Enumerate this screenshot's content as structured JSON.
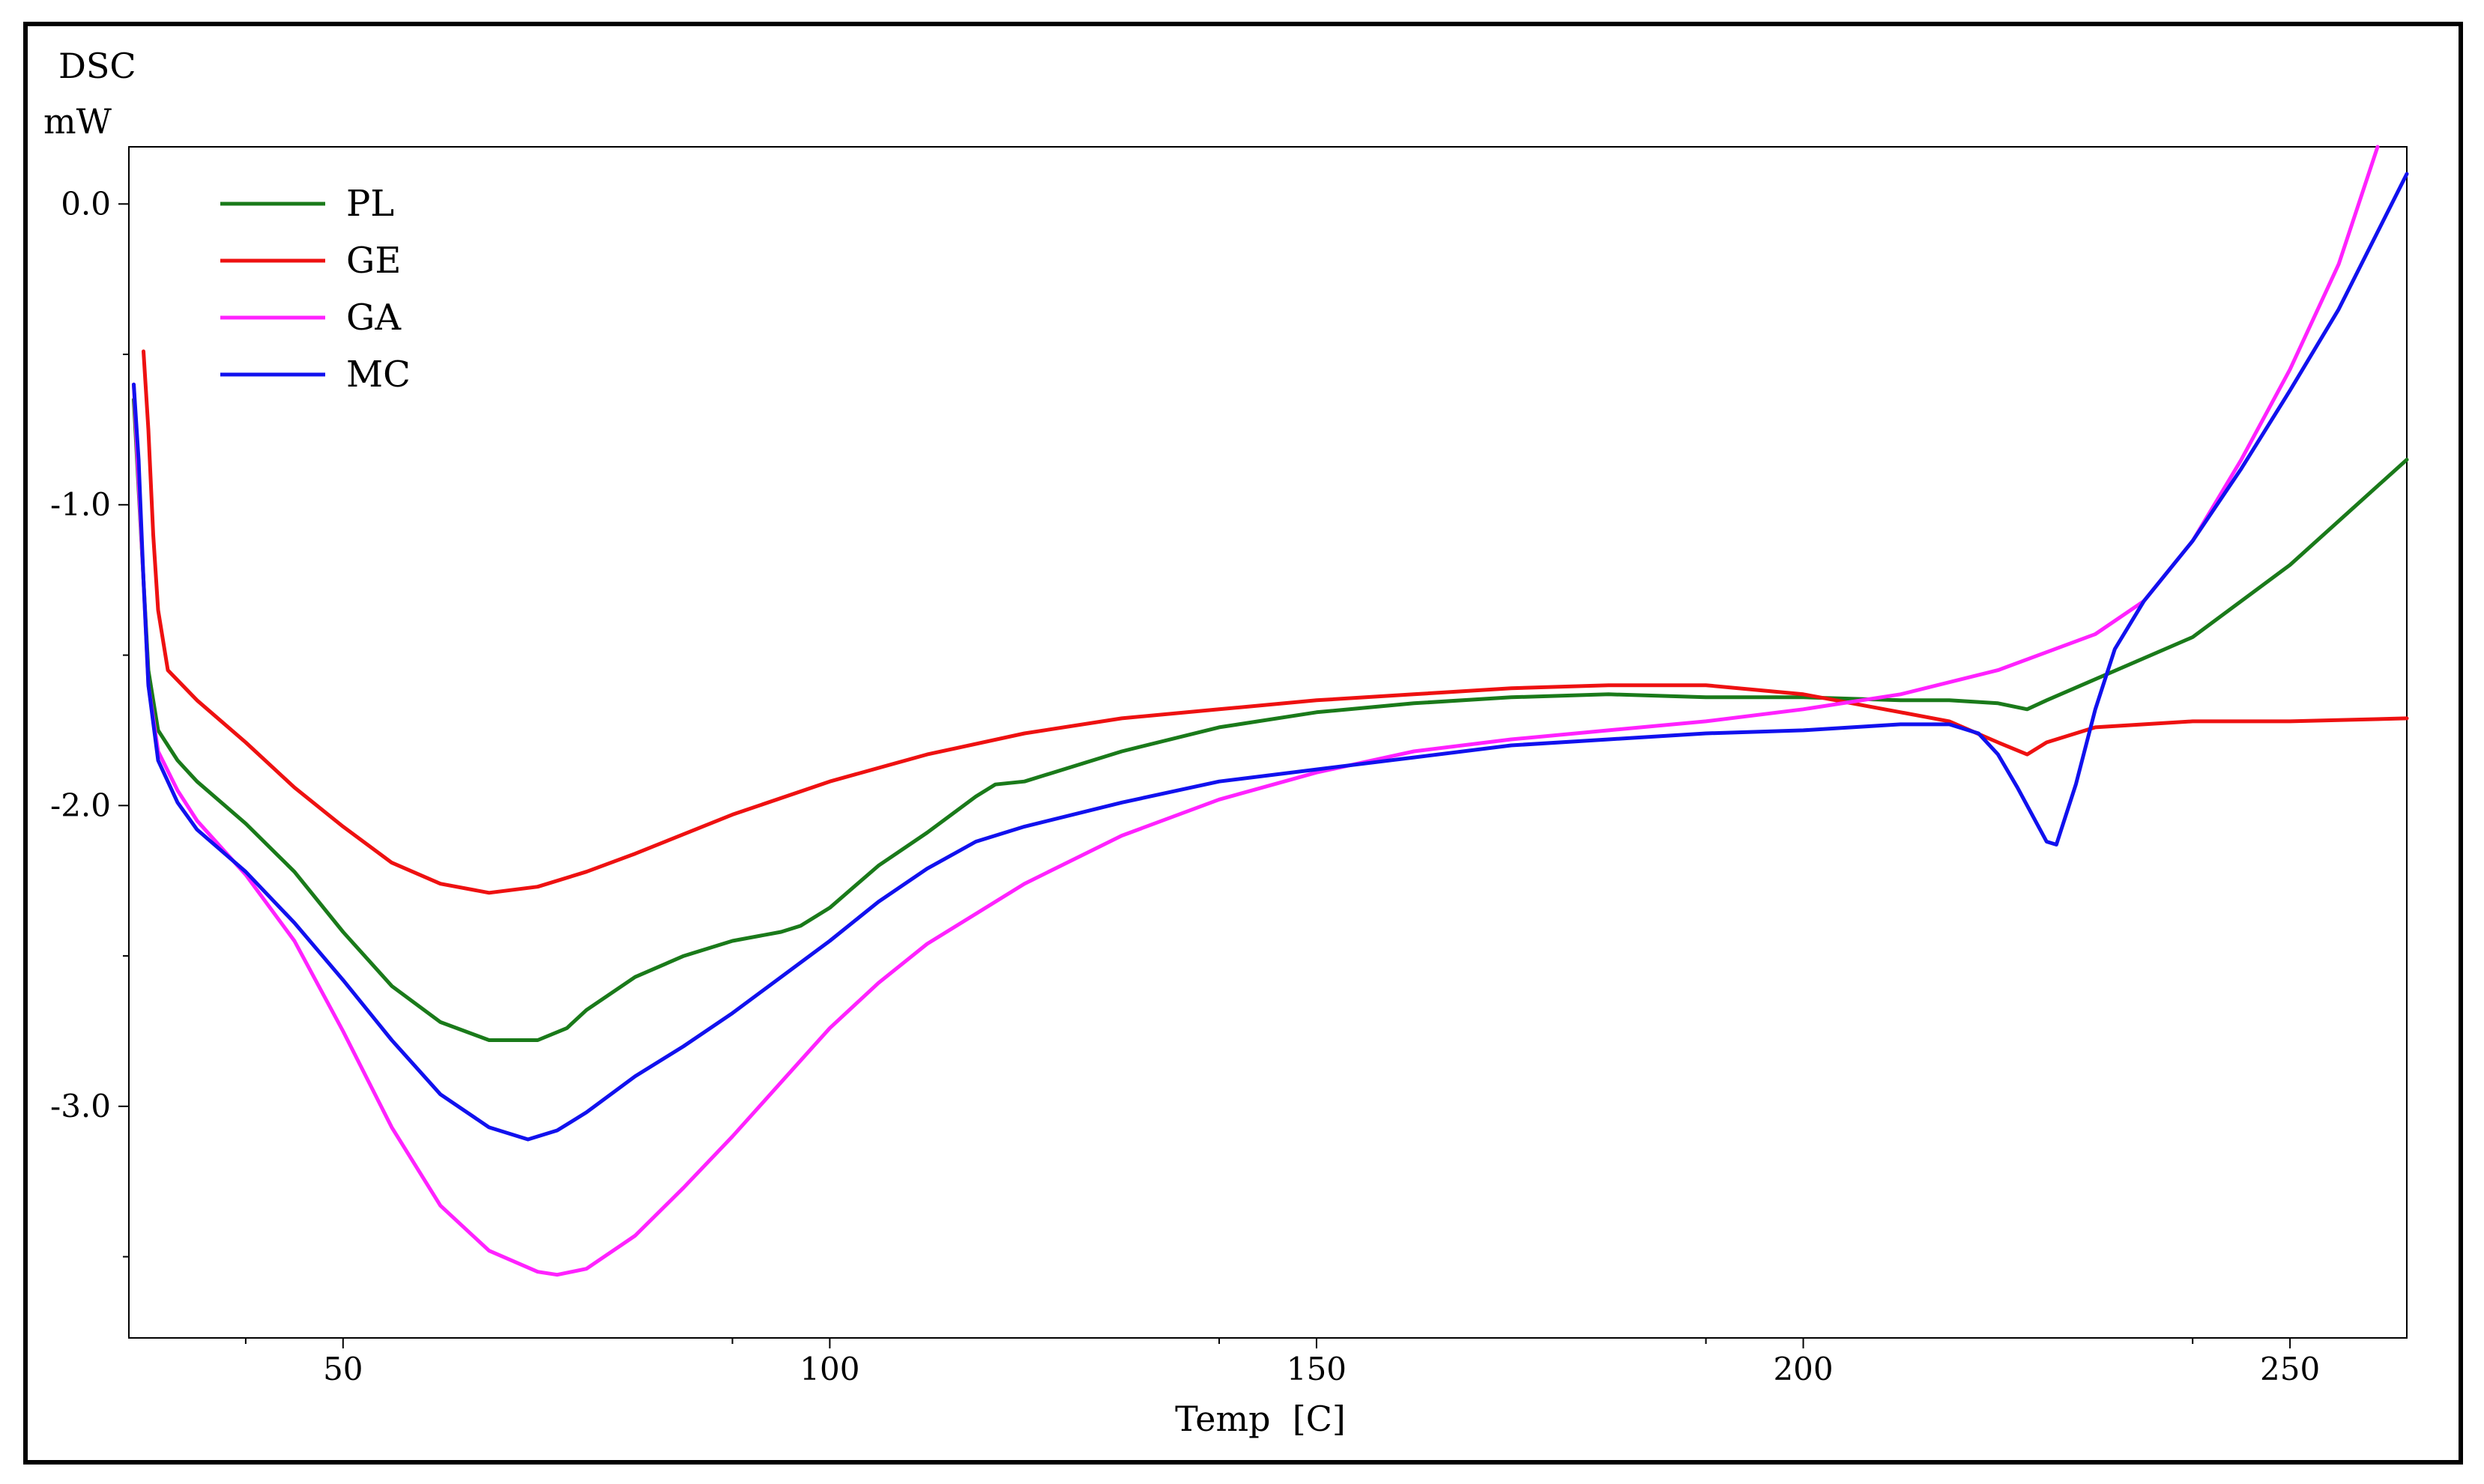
{
  "chart_data": {
    "type": "line",
    "ylabel_line1": "DSC",
    "ylabel_line2": "mW",
    "xlabel": "Temp  [C]",
    "xlim": [
      28,
      262
    ],
    "ylim": [
      -3.77,
      0.19
    ],
    "x_ticks": [
      50,
      100,
      150,
      200,
      250
    ],
    "x_tick_labels": [
      "50",
      "100",
      "150",
      "200",
      "250"
    ],
    "y_ticks": [
      0.0,
      -1.0,
      -2.0,
      -3.0
    ],
    "y_tick_labels": [
      "0.0",
      "-1.0",
      "-2.0",
      "-3.0"
    ],
    "legend_position": "top-left",
    "grid": false,
    "series": [
      {
        "name": "PL",
        "color": "#1a7a1a",
        "x": [
          28.5,
          29.5,
          30,
          31,
          33,
          35,
          40,
          45,
          50,
          55,
          60,
          65,
          70,
          73,
          75,
          80,
          85,
          90,
          95,
          97,
          100,
          105,
          110,
          115,
          117,
          120,
          130,
          140,
          150,
          160,
          170,
          180,
          190,
          200,
          210,
          215,
          220,
          223,
          225,
          230,
          240,
          250,
          262
        ],
        "y": [
          -0.65,
          -1.25,
          -1.55,
          -1.75,
          -1.85,
          -1.92,
          -2.06,
          -2.22,
          -2.42,
          -2.6,
          -2.72,
          -2.78,
          -2.78,
          -2.74,
          -2.68,
          -2.57,
          -2.5,
          -2.45,
          -2.42,
          -2.4,
          -2.34,
          -2.2,
          -2.09,
          -1.97,
          -1.93,
          -1.92,
          -1.82,
          -1.74,
          -1.69,
          -1.66,
          -1.64,
          -1.63,
          -1.64,
          -1.64,
          -1.65,
          -1.65,
          -1.66,
          -1.68,
          -1.65,
          -1.58,
          -1.44,
          -1.2,
          -0.85
        ]
      },
      {
        "name": "GE",
        "color": "#ee1111",
        "x": [
          29.5,
          30,
          30.5,
          31,
          32,
          35,
          40,
          45,
          50,
          55,
          60,
          65,
          70,
          75,
          80,
          90,
          100,
          110,
          120,
          130,
          140,
          150,
          160,
          170,
          180,
          190,
          200,
          205,
          210,
          215,
          220,
          223,
          225,
          230,
          240,
          250,
          262
        ],
        "y": [
          -0.49,
          -0.75,
          -1.1,
          -1.35,
          -1.55,
          -1.65,
          -1.79,
          -1.94,
          -2.07,
          -2.19,
          -2.26,
          -2.29,
          -2.27,
          -2.22,
          -2.16,
          -2.03,
          -1.92,
          -1.83,
          -1.76,
          -1.71,
          -1.68,
          -1.65,
          -1.63,
          -1.61,
          -1.6,
          -1.6,
          -1.63,
          -1.66,
          -1.69,
          -1.72,
          -1.79,
          -1.83,
          -1.79,
          -1.74,
          -1.72,
          -1.72,
          -1.71
        ]
      },
      {
        "name": "GA",
        "color": "#ff22ff",
        "x": [
          28.5,
          29.5,
          30,
          31,
          33,
          35,
          40,
          45,
          50,
          55,
          60,
          65,
          70,
          72,
          75,
          80,
          85,
          90,
          95,
          100,
          105,
          110,
          115,
          120,
          130,
          140,
          150,
          160,
          170,
          180,
          190,
          200,
          210,
          220,
          230,
          235,
          240,
          245,
          250,
          255,
          259
        ],
        "y": [
          -0.6,
          -1.25,
          -1.6,
          -1.82,
          -1.95,
          -2.05,
          -2.23,
          -2.45,
          -2.75,
          -3.07,
          -3.33,
          -3.48,
          -3.55,
          -3.56,
          -3.54,
          -3.43,
          -3.27,
          -3.1,
          -2.92,
          -2.74,
          -2.59,
          -2.46,
          -2.36,
          -2.26,
          -2.1,
          -1.98,
          -1.89,
          -1.82,
          -1.78,
          -1.75,
          -1.72,
          -1.68,
          -1.63,
          -1.55,
          -1.43,
          -1.32,
          -1.12,
          -0.85,
          -0.55,
          -0.2,
          0.19
        ]
      },
      {
        "name": "MC",
        "color": "#1111ee",
        "x": [
          28.5,
          29,
          29.5,
          30,
          31,
          33,
          35,
          40,
          45,
          50,
          55,
          60,
          65,
          69,
          72,
          75,
          80,
          85,
          90,
          95,
          100,
          105,
          110,
          115,
          120,
          130,
          140,
          150,
          160,
          170,
          180,
          190,
          200,
          210,
          215,
          218,
          220,
          222,
          224,
          225,
          226,
          228,
          230,
          232,
          235,
          240,
          245,
          250,
          255,
          262
        ],
        "y": [
          -0.6,
          -0.85,
          -1.25,
          -1.6,
          -1.85,
          -1.99,
          -2.08,
          -2.22,
          -2.39,
          -2.58,
          -2.78,
          -2.96,
          -3.07,
          -3.11,
          -3.08,
          -3.02,
          -2.9,
          -2.8,
          -2.69,
          -2.57,
          -2.45,
          -2.32,
          -2.21,
          -2.12,
          -2.07,
          -1.99,
          -1.92,
          -1.88,
          -1.84,
          -1.8,
          -1.78,
          -1.76,
          -1.75,
          -1.73,
          -1.73,
          -1.76,
          -1.83,
          -1.94,
          -2.06,
          -2.12,
          -2.13,
          -1.93,
          -1.68,
          -1.48,
          -1.32,
          -1.12,
          -0.88,
          -0.62,
          -0.35,
          0.1
        ]
      }
    ]
  }
}
